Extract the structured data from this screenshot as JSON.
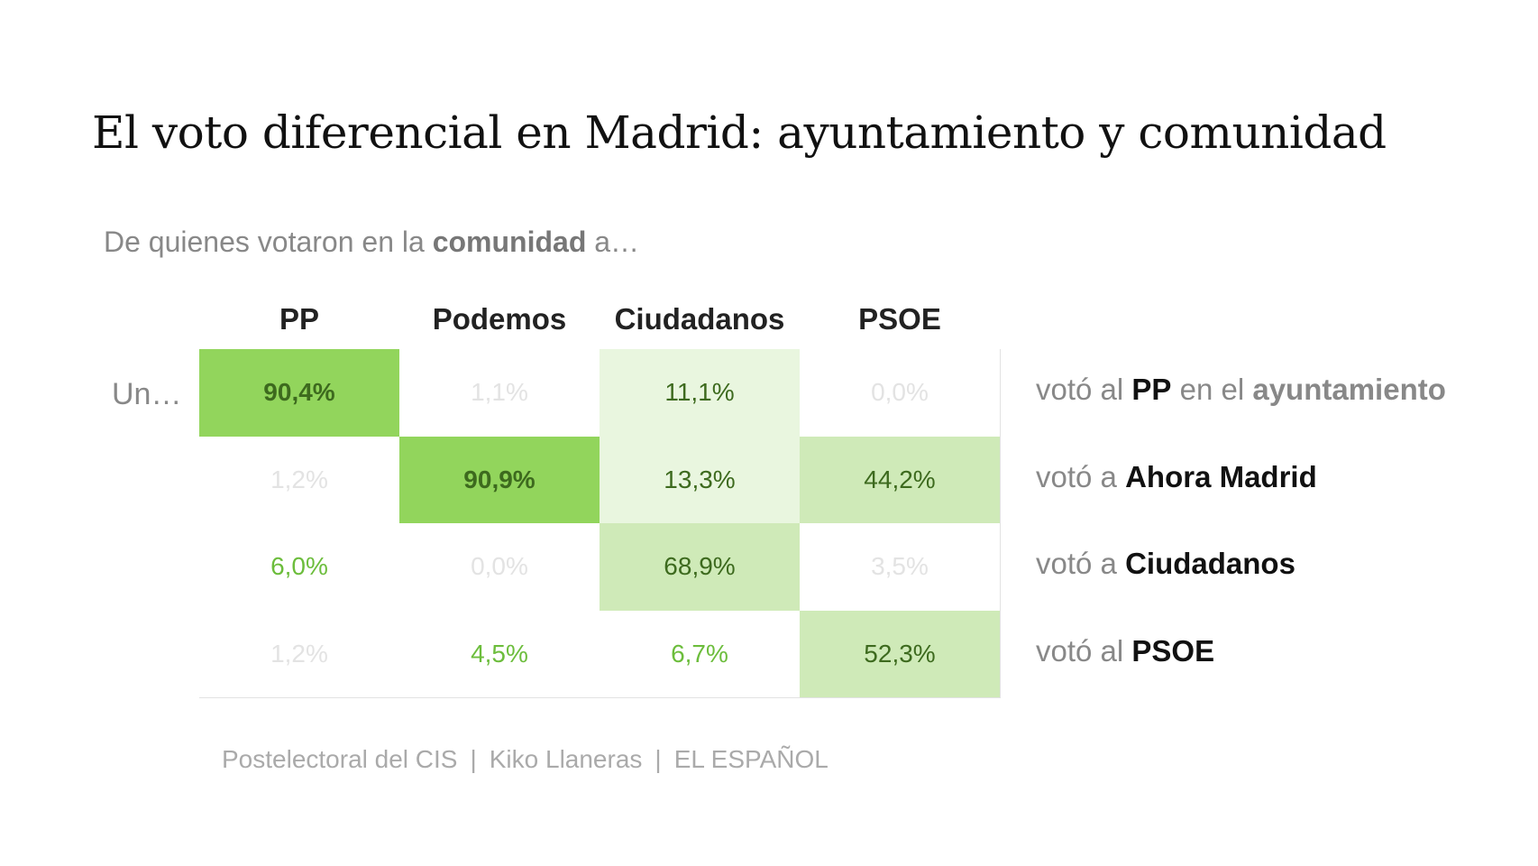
{
  "title": "El voto diferencial en Madrid: ayuntamiento y comunidad",
  "subtitle": {
    "prefix": "De quienes votaron en la ",
    "bold": "comunidad",
    "suffix": " a…"
  },
  "row_lead": "Un…",
  "chart_data": {
    "type": "heatmap",
    "columns": [
      "PP",
      "Podemos",
      "Ciudadanos",
      "PSOE"
    ],
    "rows": [
      {
        "pre": "votó al ",
        "bold": "PP",
        "mid": " en el ",
        "bold2": "ayuntamiento"
      },
      {
        "pre": "votó a ",
        "bold": "Ahora Madrid"
      },
      {
        "pre": "votó a ",
        "bold": "Ciudadanos"
      },
      {
        "pre": "votó al ",
        "bold": "PSOE"
      }
    ],
    "values": [
      [
        90.4,
        1.1,
        11.1,
        0.0
      ],
      [
        1.2,
        90.9,
        13.3,
        44.2
      ],
      [
        6.0,
        0.0,
        68.9,
        3.5
      ],
      [
        1.2,
        4.5,
        6.7,
        52.3
      ]
    ],
    "labels": [
      [
        "90,4%",
        "1,1%",
        "11,1%",
        "0,0%"
      ],
      [
        "1,2%",
        "90,9%",
        "13,3%",
        "44,2%"
      ],
      [
        "6,0%",
        "0,0%",
        "68,9%",
        "3,5%"
      ],
      [
        "1,2%",
        "4,5%",
        "6,7%",
        "52,3%"
      ]
    ],
    "colors": {
      "high": "#92d55c",
      "mid": "#cfeab8",
      "low": "#e9f6df",
      "none": "#ffffff",
      "text_dark": "#3d6a1e",
      "text_green": "#6cbd3c",
      "text_faint": "#e3e3e3"
    }
  },
  "footer": [
    "Postelectoral del CIS",
    "Kiko Llaneras",
    "EL ESPAÑOL"
  ],
  "footer_sep": "|"
}
